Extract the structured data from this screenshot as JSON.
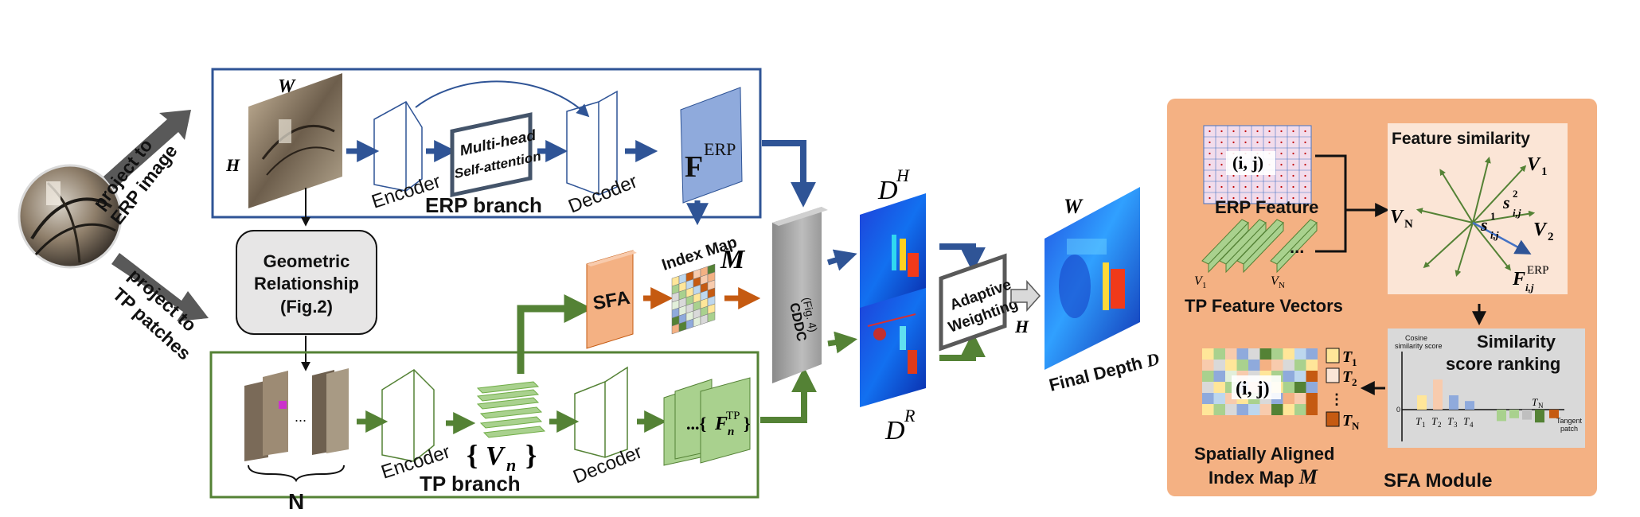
{
  "colors": {
    "erp_branch_border": "#2F5496",
    "tp_branch_border": "#548235",
    "erp_arrow": "#2F5496",
    "tp_arrow": "#548235",
    "sfa_arrow": "#C55A11",
    "sfa_block": "#F4B183",
    "cddc_block": "#A6A6A6",
    "feature_map": "#8FAADC",
    "tp_feature": "#A9D18E",
    "module_bg": "#F4B183",
    "module_panel": "#FBE5D6"
  },
  "labels": {
    "project_erp_1": "project to",
    "project_erp_2": "ERP image",
    "project_tp_1": "project to",
    "project_tp_2": "TP patches",
    "w_top": "W",
    "h_left": "H",
    "encoder_erp": "Encoder",
    "mhsa_1": "Multi-head",
    "mhsa_2": "Self-attention",
    "erp_branch": "ERP branch",
    "decoder_erp": "Decoder",
    "f_erp": "F",
    "f_erp_sup": "ERP",
    "geo_1": "Geometric",
    "geo_2": "Relationship",
    "geo_3": "(Fig.2)",
    "sfa_block": "SFA",
    "index_map": "Index Map",
    "m_label": "M",
    "cddc_1": "CDDC",
    "cddc_2": "(Fig. 4)",
    "dh": "D",
    "dh_sup": "H",
    "dr": "D",
    "dr_sup": "R",
    "adaptive_1": "Adaptive",
    "adaptive_2": "Weighting",
    "h_mid": "H",
    "w_final": "W",
    "final_depth": "Final Depth ",
    "final_depth_d": "D",
    "ellipsis": "...",
    "n_label": "N",
    "encoder_tp": "Encoder",
    "vn_open": "{",
    "vn_v": "V",
    "vn_n": "n",
    "vn_close": "}",
    "tp_branch": "TP branch",
    "decoder_tp": "Decoder",
    "fn_open": "...{",
    "fn_f": "F",
    "fn_n": "n",
    "fn_sup": "TP",
    "fn_close": "}"
  },
  "sfa_module": {
    "title": "SFA Module",
    "grid_ij": "(i, j)",
    "erp_feature": "ERP Feature",
    "tp_vectors": "TP Feature Vectors",
    "v1": "V",
    "v1_sub": "1",
    "vN": "V",
    "vN_sub": "N",
    "vec_ellipsis": "...",
    "feature_similarity": "Feature similarity",
    "fs_v1": "V",
    "fs_v1_sub": "1",
    "fs_v2": "V",
    "fs_v2_sub": "2",
    "fs_vN": "V",
    "fs_vN_sub": "N",
    "s1": "s",
    "s1_sup": "1",
    "s1_sub": "i,j",
    "s2": "s",
    "s2_sup": "2",
    "s2_sub": "i,j",
    "ferp": "F",
    "ferp_sub": "i,j",
    "ferp_sup": "ERP",
    "ranking_1": "Similarity",
    "ranking_2": "score ranking",
    "cos_1": "Cosine",
    "cos_2": "similarity score",
    "zero": "0",
    "tangent_1": "Tangent",
    "tangent_2": "patch",
    "t1": "T",
    "t1_sub": "1",
    "t2": "T",
    "t2_sub": "2",
    "t3": "T",
    "t3_sub": "3",
    "t4": "T",
    "t4_sub": "4",
    "tN": "T",
    "tN_sub": "N",
    "map_ij": "(i, j)",
    "legend_t1": "T",
    "legend_t1_sub": "1",
    "legend_t2": "T",
    "legend_t2_sub": "2",
    "legend_dots": "⋮",
    "legend_tN": "T",
    "legend_tN_sub": "N",
    "aligned_1": "Spatially Aligned",
    "aligned_2": "Index Map ",
    "aligned_m": "M"
  },
  "chart_ranking": {
    "type": "bar",
    "categories": [
      "T1",
      "T2",
      "T3",
      "T4",
      "",
      "",
      "",
      "",
      "TN"
    ],
    "values": [
      1.0,
      2.1,
      1.0,
      0.6,
      -0.8,
      -0.6,
      -0.7,
      -0.9,
      -0.6
    ],
    "colors": [
      "#FFE699",
      "#F8CBAD",
      "#8FAADC",
      "#8FAADC",
      "#A9D18E",
      "#A9D18E",
      "#BFBFBF",
      "#548235",
      "#C55A11"
    ]
  }
}
